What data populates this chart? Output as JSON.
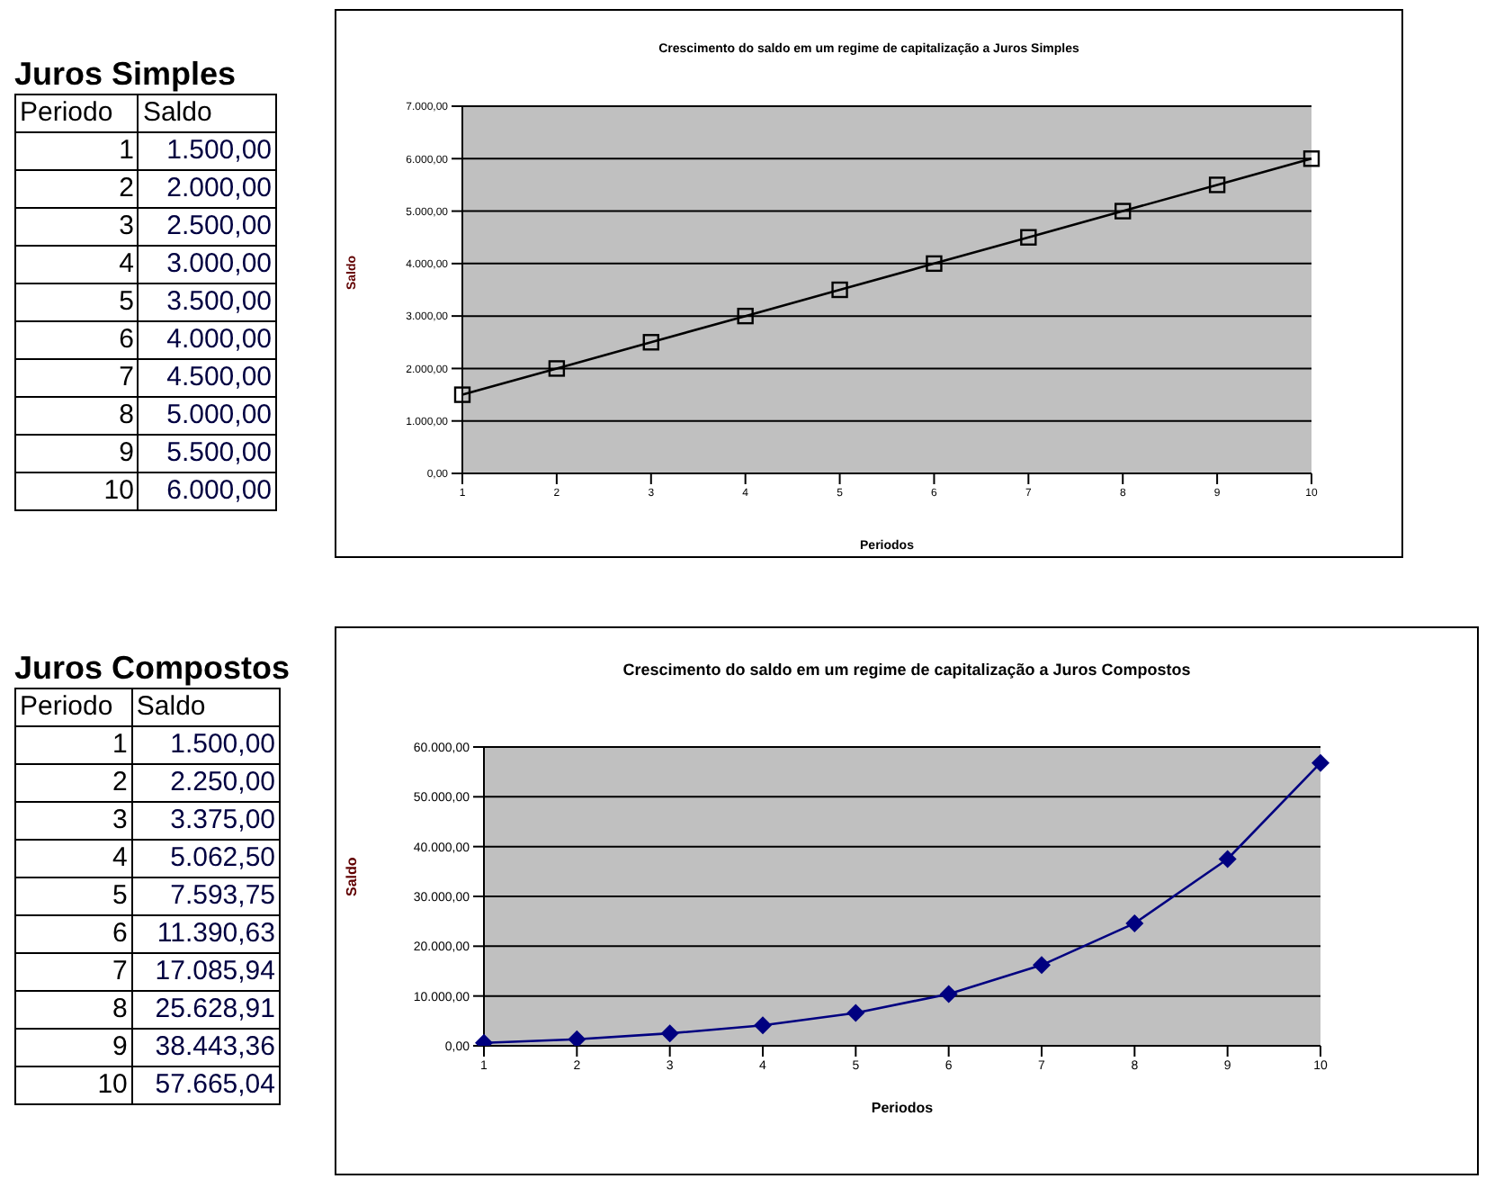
{
  "chart_data": [
    {
      "type": "line",
      "title": "Crescimento do saldo em um regime de capitalização a Juros Simples",
      "xlabel": "Periodos",
      "ylabel": "Saldo",
      "annotations": [
        "Juros Simples",
        "Periodo",
        "Saldo",
        "1",
        "1.500,00",
        "2",
        "2.000,00",
        "3",
        "2.500,00",
        "4",
        "3.000,00",
        "5",
        "3.500,00",
        "6",
        "4.000,00",
        "7",
        "4.500,00",
        "8",
        "5.000,00",
        "9",
        "5.500,00",
        "10",
        "6.000,00"
      ],
      "categories": [
        "1",
        "2",
        "3",
        "4",
        "5",
        "6",
        "7",
        "8",
        "9",
        "10"
      ],
      "series": [
        {
          "color": "#000000",
          "values": [
            1500,
            2000,
            2500,
            3000,
            3500,
            4000,
            4500,
            5000,
            5500,
            6000
          ]
        }
      ],
      "ylim": [
        0,
        7000
      ],
      "yticks": [
        {
          "value": 0,
          "label": "0,00"
        },
        {
          "value": 1000,
          "label": "1.000,00"
        },
        {
          "value": 2000,
          "label": "2.000,00"
        },
        {
          "value": 3000,
          "label": "3.000,00"
        },
        {
          "value": 4000,
          "label": "4.000,00"
        },
        {
          "value": 5000,
          "label": "5.000,00"
        },
        {
          "value": 6000,
          "label": "6.000,00"
        },
        {
          "value": 7000,
          "label": "7.000,00"
        }
      ],
      "grid": "y",
      "marker": "square",
      "line_style": "solid"
    },
    {
      "type": "line",
      "title": "Crescimento do saldo em um regime de capitalização a Juros Compostos",
      "xlabel": "Periodos",
      "ylabel": "Saldo",
      "annotations": [
        "Juros Compostos",
        "Periodo",
        "Saldo",
        "1",
        "1.500,00",
        "2",
        "2.250,00",
        "3",
        "3.375,00",
        "4",
        "5.062,50",
        "5",
        "7.593,75",
        "6",
        "11.390,63",
        "7",
        "17.085,94",
        "8",
        "25.628,91",
        "9",
        "38.443,36",
        "10",
        "57.665,04"
      ],
      "categories": [
        "1",
        "2",
        "3",
        "4",
        "5",
        "6",
        "7",
        "8",
        "9",
        "10"
      ],
      "series": [
        {
          "color": "#000080",
          "values": [
            600,
            1300,
            2500,
            4100,
            6600,
            10400,
            16200,
            24600,
            37500,
            56800
          ]
        }
      ],
      "ylim": [
        0,
        60000
      ],
      "yticks": [
        {
          "value": 0,
          "label": "0,00"
        },
        {
          "value": 10000,
          "label": "10.000,00"
        },
        {
          "value": 20000,
          "label": "20.000,00"
        },
        {
          "value": 30000,
          "label": "30.000,00"
        },
        {
          "value": 40000,
          "label": "40.000,00"
        },
        {
          "value": 50000,
          "label": "50.000,00"
        },
        {
          "value": 60000,
          "label": "60.000,00"
        }
      ],
      "grid": "y",
      "marker": "diamond",
      "line_style": "solid"
    }
  ]
}
